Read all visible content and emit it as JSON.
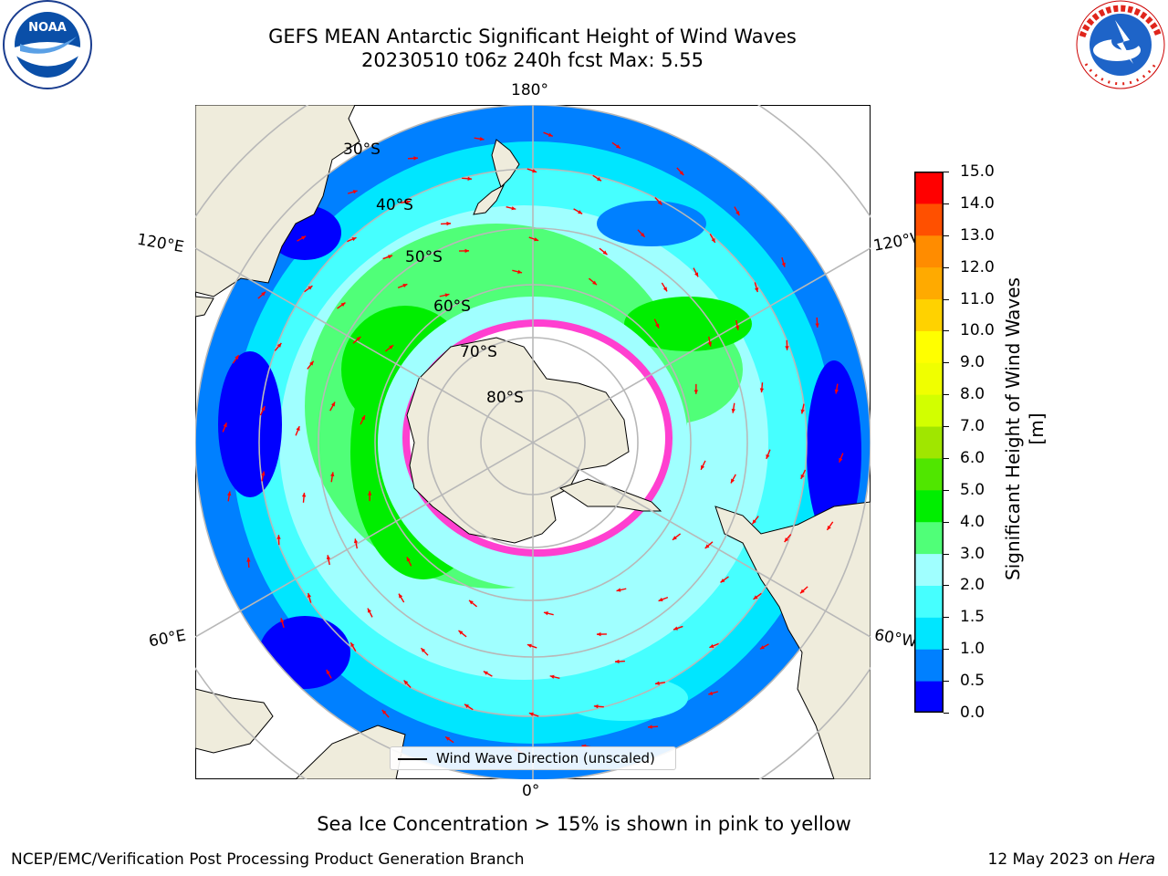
{
  "title": {
    "line1": "GEFS MEAN Antarctic Significant Height of Wind Waves",
    "line2": "20230510 t06z 240h fcst   Max: 5.55"
  },
  "logos": {
    "noaa": {
      "name": "noaa-logo",
      "text": "NOAA",
      "ring_text": "NATIONAL OCEANIC AND ATMOSPHERIC ADMINISTRATION · U.S. DEPARTMENT OF COMMERCE"
    },
    "nws": {
      "name": "nws-logo",
      "ring_text": "NATIONAL WEATHER SERVICE"
    }
  },
  "map": {
    "projection": "south-polar-stereographic",
    "longitude_labels": {
      "top": "180°",
      "bottom": "0°",
      "upper_left": "120°E",
      "upper_right": "120°W",
      "lower_left": "60°E",
      "lower_right": "60°W"
    },
    "latitude_labels": [
      "30°S",
      "40°S",
      "50°S",
      "60°S",
      "70°S",
      "80°S"
    ],
    "legend_label": "Wind Wave Direction (unscaled)",
    "colors": {
      "land": "#efecdc",
      "sea_ice": "#ff3fd0",
      "graticule": "#b8b8b8",
      "arrow": "#ff0000"
    }
  },
  "colorbar": {
    "title": "Significant Height of Wind Waves [m]",
    "ticks": [
      "0.0",
      "0.5",
      "1.0",
      "1.5",
      "2.0",
      "3.0",
      "4.0",
      "5.0",
      "6.0",
      "7.0",
      "8.0",
      "9.0",
      "10.0",
      "11.0",
      "12.0",
      "13.0",
      "14.0",
      "15.0"
    ],
    "colors": [
      "#0000ff",
      "#0080ff",
      "#00e6ff",
      "#46ffff",
      "#a0ffff",
      "#50ff78",
      "#00ee00",
      "#50e600",
      "#a0e600",
      "#d2ff00",
      "#f0ff00",
      "#ffff00",
      "#ffd200",
      "#ffaa00",
      "#ff8c00",
      "#ff5000",
      "#ff0000"
    ]
  },
  "note": "Sea Ice Concentration > 15% is shown in pink to yellow",
  "footer": {
    "left": "NCEP/EMC/Verification Post Processing Product Generation Branch",
    "right_date": "12 May 2023 on ",
    "right_host": "Hera"
  }
}
